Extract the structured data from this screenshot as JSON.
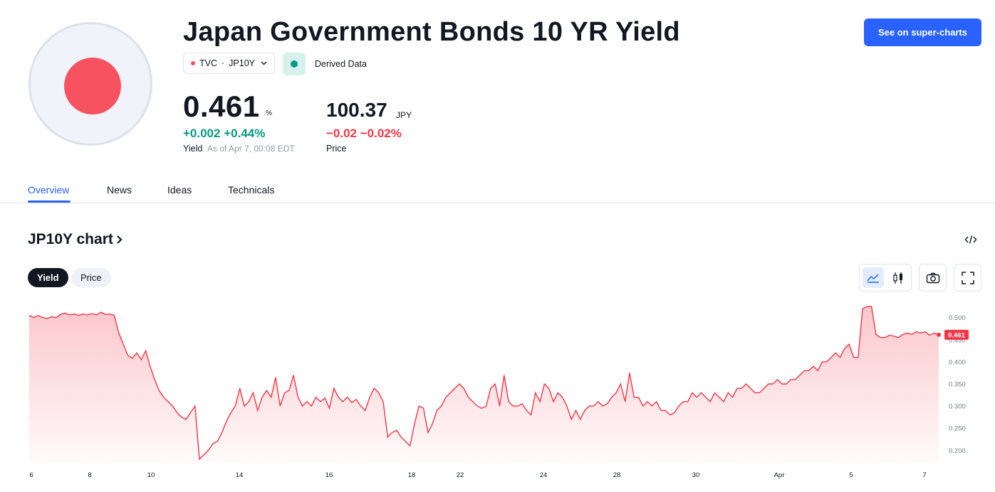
{
  "header": {
    "title": "Japan Government Bonds 10 YR Yield",
    "symbol_exchange": "TVC",
    "symbol_ticker": "JP10Y",
    "derived_label": "Derived Data",
    "supercharts_label": "See on super-charts"
  },
  "yield": {
    "value": "0.461",
    "unit": "%",
    "change": "+0.002",
    "change_pct": "+0.44%",
    "label": "Yield",
    "asof": "As of Apr 7, 00:08 EDT"
  },
  "price": {
    "value": "100.37",
    "unit": "JPY",
    "change": "−0.02",
    "change_pct": "−0.02%",
    "label": "Price"
  },
  "tabs": [
    {
      "label": "Overview",
      "active": true
    },
    {
      "label": "News"
    },
    {
      "label": "Ideas"
    },
    {
      "label": "Technicals"
    }
  ],
  "chart_section": {
    "title": "JP10Y chart",
    "embed_icon": "code-embed-icon",
    "toggle_yield": "Yield",
    "toggle_price": "Price",
    "icons": [
      "area-chart-icon",
      "candlestick-icon",
      "camera-icon",
      "fullscreen-icon"
    ]
  },
  "colors": {
    "accent": "#2962ff",
    "positive": "#089981",
    "negative": "#f23645",
    "series_line": "#f23645",
    "flag_red": "#f7525f"
  },
  "chart_data": {
    "type": "area",
    "series": [
      {
        "values": [
          0.505,
          0.5,
          0.505,
          0.5,
          0.498,
          0.502,
          0.5,
          0.507,
          0.51,
          0.506,
          0.508,
          0.505,
          0.508,
          0.506,
          0.509,
          0.506,
          0.512,
          0.507,
          0.508,
          0.505,
          0.465,
          0.44,
          0.415,
          0.408,
          0.42,
          0.405,
          0.425,
          0.39,
          0.36,
          0.335,
          0.32,
          0.31,
          0.3,
          0.285,
          0.275,
          0.27,
          0.285,
          0.3,
          0.18,
          0.19,
          0.2,
          0.215,
          0.22,
          0.24,
          0.265,
          0.285,
          0.3,
          0.34,
          0.3,
          0.31,
          0.33,
          0.29,
          0.32,
          0.335,
          0.32,
          0.365,
          0.3,
          0.33,
          0.335,
          0.37,
          0.32,
          0.3,
          0.31,
          0.3,
          0.32,
          0.31,
          0.318,
          0.295,
          0.34,
          0.32,
          0.31,
          0.32,
          0.308,
          0.315,
          0.3,
          0.29,
          0.32,
          0.34,
          0.33,
          0.31,
          0.23,
          0.24,
          0.245,
          0.23,
          0.22,
          0.21,
          0.26,
          0.3,
          0.295,
          0.24,
          0.26,
          0.29,
          0.3,
          0.32,
          0.33,
          0.34,
          0.35,
          0.34,
          0.32,
          0.31,
          0.3,
          0.295,
          0.3,
          0.34,
          0.35,
          0.3,
          0.37,
          0.31,
          0.3,
          0.3,
          0.305,
          0.29,
          0.28,
          0.33,
          0.31,
          0.35,
          0.34,
          0.31,
          0.33,
          0.32,
          0.3,
          0.27,
          0.29,
          0.27,
          0.29,
          0.3,
          0.3,
          0.31,
          0.3,
          0.305,
          0.32,
          0.33,
          0.35,
          0.31,
          0.375,
          0.32,
          0.32,
          0.3,
          0.31,
          0.3,
          0.31,
          0.29,
          0.29,
          0.28,
          0.285,
          0.3,
          0.31,
          0.31,
          0.33,
          0.32,
          0.33,
          0.32,
          0.31,
          0.33,
          0.32,
          0.31,
          0.33,
          0.32,
          0.34,
          0.34,
          0.35,
          0.34,
          0.33,
          0.33,
          0.34,
          0.35,
          0.35,
          0.36,
          0.35,
          0.35,
          0.36,
          0.36,
          0.37,
          0.38,
          0.38,
          0.39,
          0.38,
          0.4,
          0.4,
          0.41,
          0.42,
          0.41,
          0.43,
          0.44,
          0.41,
          0.41,
          0.52,
          0.525,
          0.525,
          0.462,
          0.455,
          0.455,
          0.46,
          0.458,
          0.455,
          0.462,
          0.465,
          0.462,
          0.468,
          0.465,
          0.468,
          0.46,
          0.465,
          0.461
        ]
      }
    ],
    "x_ticks": [
      "6",
      "8",
      "10",
      "14",
      "16",
      "18",
      "22",
      "24",
      "28",
      "30",
      "Apr",
      "5",
      "7"
    ],
    "y_ticks": [
      0.2,
      0.25,
      0.3,
      0.35,
      0.4,
      0.45,
      0.5
    ],
    "ylim": [
      0.17,
      0.53
    ],
    "last_value_label": "0.461"
  }
}
